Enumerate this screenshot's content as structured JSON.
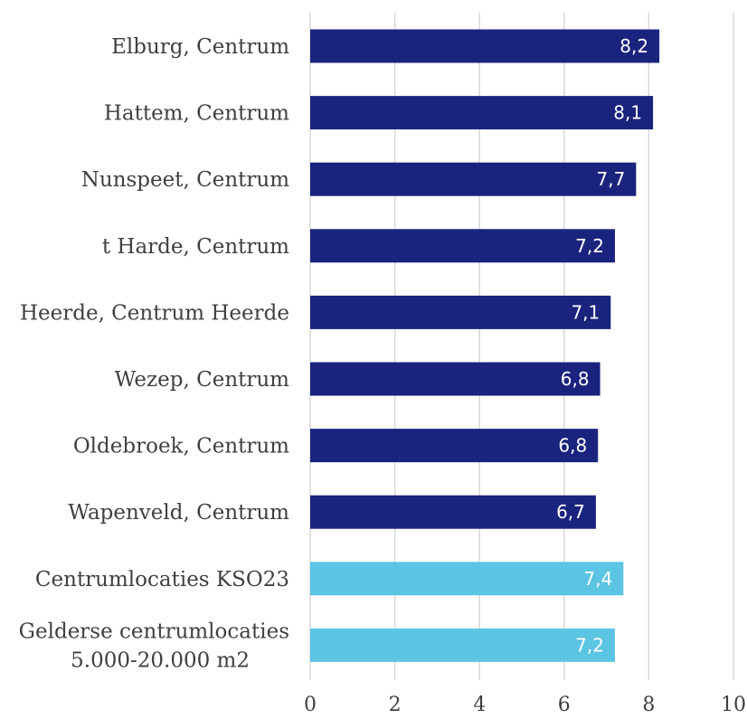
{
  "chart_data": {
    "type": "bar",
    "orientation": "horizontal",
    "categories": [
      [
        "Elburg, Centrum"
      ],
      [
        "Hattem, Centrum"
      ],
      [
        "Nunspeet, Centrum"
      ],
      [
        "t Harde, Centrum"
      ],
      [
        "Heerde, Centrum Heerde"
      ],
      [
        "Wezep, Centrum"
      ],
      [
        "Oldebroek, Centrum"
      ],
      [
        "Wapenveld, Centrum"
      ],
      [
        "Centrumlocaties KSO23"
      ],
      [
        "Gelderse centrumlocaties",
        "5.000-20.000 m2"
      ]
    ],
    "values": [
      8.25,
      8.1,
      7.7,
      7.2,
      7.1,
      6.85,
      6.8,
      6.75,
      7.4,
      7.2
    ],
    "data_labels": [
      "8,2",
      "8,1",
      "7,7",
      "7,2",
      "7,1",
      "6,8",
      "6,8",
      "6,7",
      "7,4",
      "7,2"
    ],
    "bar_colors": [
      "#1a237e",
      "#1a237e",
      "#1a237e",
      "#1a237e",
      "#1a237e",
      "#1a237e",
      "#1a237e",
      "#1a237e",
      "#5bc5e3",
      "#5bc5e3"
    ],
    "xlim": [
      0,
      10
    ],
    "xticks": [
      0,
      2,
      4,
      6,
      8,
      10
    ],
    "xtick_labels": [
      "0",
      "2",
      "4",
      "6",
      "8",
      "10"
    ],
    "grid": "vertical",
    "legend": "none",
    "title": "",
    "xlabel": "",
    "ylabel": ""
  }
}
